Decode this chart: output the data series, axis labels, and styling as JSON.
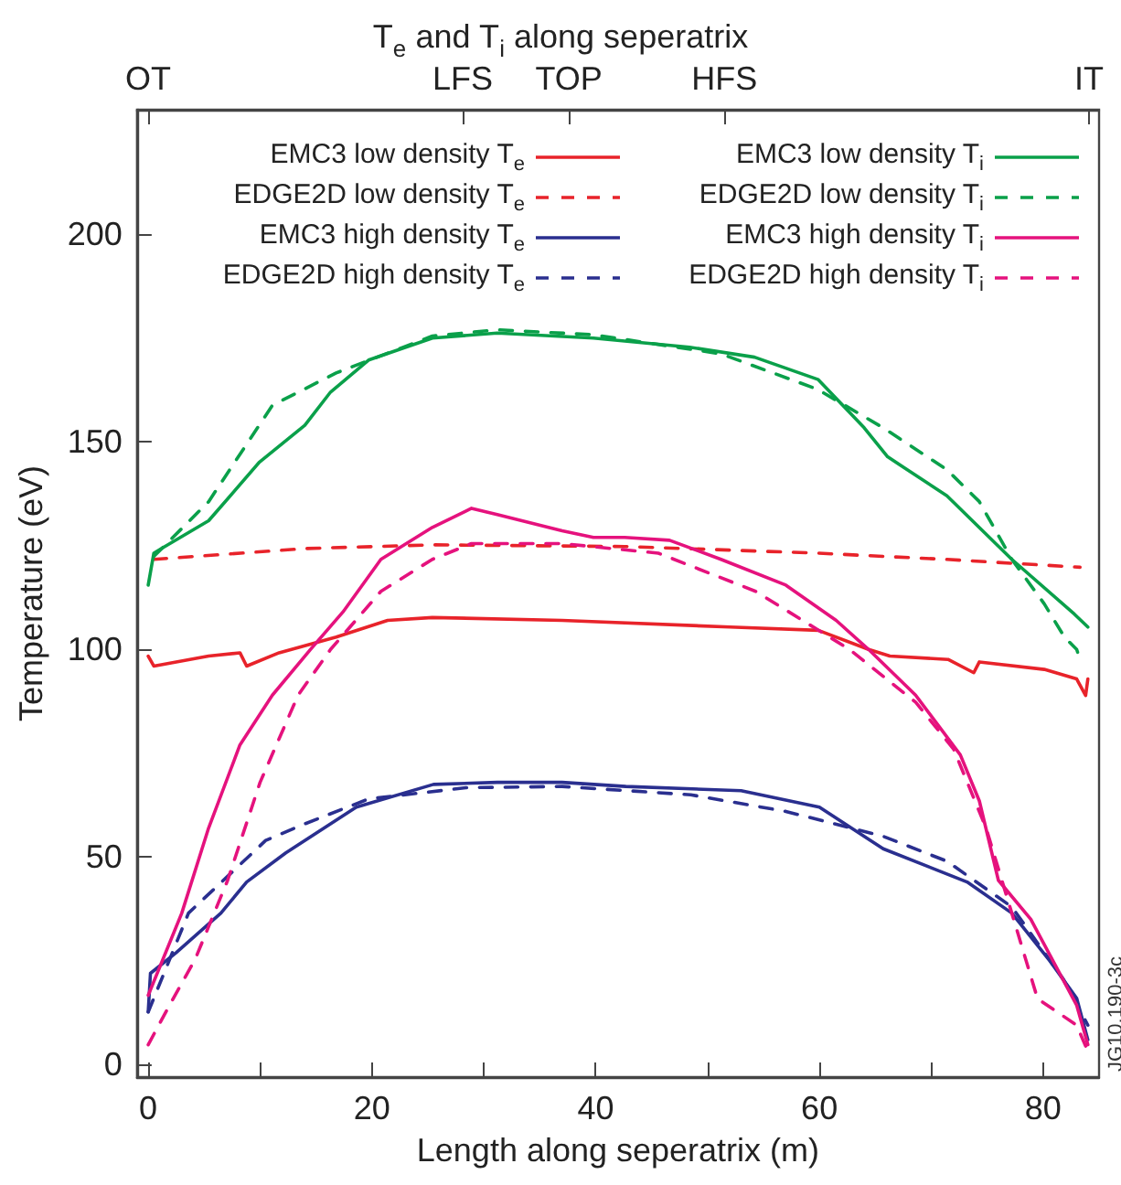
{
  "chart_data": {
    "type": "line",
    "title": "T$_{e}$ and T$_{i}$ along seperatrix",
    "xlabel": "Length along seperatrix (m)",
    "ylabel": "Temperature (eV)",
    "xlim": [
      -1,
      85
    ],
    "xticks": [
      0,
      {
        "value": 10,
        "label": null
      },
      20,
      {
        "value": 30,
        "label": null
      },
      40,
      {
        "value": 50,
        "label": null
      },
      60,
      {
        "value": 70,
        "label": null
      },
      80
    ],
    "ylim": [
      -3,
      230
    ],
    "yticks": [
      0,
      50,
      100,
      150,
      200
    ],
    "grid": false,
    "legend": "top",
    "marker": "none",
    "annotations": [
      "JG10.190-3c"
    ],
    "ref_lines": [
      {
        "axis": "x",
        "value": 0,
        "label": "OT"
      },
      {
        "axis": "x",
        "value": 28.1,
        "label": "LFS"
      },
      {
        "axis": "x",
        "value": 37.6,
        "label": "TOP"
      },
      {
        "axis": "x",
        "value": 51.5,
        "label": "HFS"
      },
      {
        "axis": "x",
        "value": 84.1,
        "label": "IT"
      }
    ],
    "series": [
      {
        "name": "EMC3 low density T$_{e}$",
        "color": "#e8232a",
        "line_style": "solid",
        "x": [
          0,
          0.5,
          5.4,
          8.2,
          8.8,
          11.7,
          16.8,
          21.4,
          25.4,
          37,
          52,
          59.9,
          64.4,
          66.3,
          71.5,
          73.8,
          74.3,
          80.1,
          83,
          83.8,
          84
        ],
        "values": [
          98.4,
          96,
          98.4,
          99.2,
          96,
          99.2,
          103,
          107,
          107.7,
          107,
          105.4,
          104.6,
          100,
          98.4,
          97.6,
          94.4,
          97,
          95.2,
          92.9,
          88.9,
          92.9
        ]
      },
      {
        "name": "EDGE2D low density T$_{e}$",
        "color": "#e8232a",
        "line_style": "dashed",
        "x": [
          0.5,
          14,
          25.4,
          42.6,
          59.8,
          71.3,
          83.3
        ],
        "values": [
          121.7,
          124.3,
          125.2,
          124.8,
          123.2,
          121.7,
          119.8
        ]
      },
      {
        "name": "EMC3 high density T$_{e}$",
        "color": "#2a2f8f",
        "line_style": "solid",
        "x": [
          0,
          0.2,
          2.5,
          6.5,
          8.8,
          12.3,
          18.6,
          25.5,
          31.2,
          37,
          42.7,
          53,
          60,
          65.7,
          73.2,
          77.2,
          80.6,
          83,
          84
        ],
        "values": [
          12.7,
          22,
          27,
          36.5,
          44,
          51,
          62,
          67.5,
          68,
          68,
          67,
          66,
          62,
          52,
          44,
          36.5,
          25,
          16,
          6
        ]
      },
      {
        "name": "EDGE2D high density T$_{e}$",
        "color": "#2a2f8f",
        "line_style": "dashed",
        "x": [
          0,
          3.6,
          10.5,
          14,
          19.7,
          28.4,
          37,
          48.5,
          57,
          65.7,
          71.4,
          77.2,
          81.8,
          84
        ],
        "values": [
          12.7,
          36.5,
          54,
          58,
          64,
          66.7,
          67,
          65,
          61,
          55,
          49,
          38,
          20.6,
          9.5
        ]
      },
      {
        "name": "EMC3 low density T$_{i}$",
        "color": "#0aa04a",
        "line_style": "solid",
        "x": [
          0,
          0.5,
          1,
          5.4,
          9.9,
          14,
          16.3,
          19.7,
          25.4,
          31.2,
          39.8,
          48.4,
          54.2,
          59.9,
          64,
          66.1,
          71.4,
          77.2,
          82.8,
          84
        ],
        "values": [
          115.5,
          123.2,
          124,
          131,
          145,
          154,
          162,
          169.7,
          175,
          176.2,
          175,
          172.8,
          170.4,
          165,
          153.4,
          146.4,
          137,
          121.7,
          108.5,
          105.4
        ]
      },
      {
        "name": "EDGE2D low density T$_{i}$",
        "color": "#0aa04a",
        "line_style": "dashed",
        "x": [
          0.5,
          5.4,
          11.1,
          16.8,
          25.4,
          31.2,
          39.8,
          51.2,
          59.8,
          65.7,
          71.4,
          74.3,
          77.2,
          80.1,
          81.9,
          83,
          83.3
        ],
        "values": [
          122.4,
          135.6,
          158.8,
          166.6,
          175.5,
          177,
          175.8,
          171.2,
          162.7,
          153.4,
          143.3,
          135.6,
          121.7,
          111,
          103,
          100,
          97.6
        ]
      },
      {
        "name": "EMC3 high density T$_{i}$",
        "color": "#e5127d",
        "line_style": "solid",
        "x": [
          0,
          3,
          5.4,
          8.2,
          11.1,
          14.5,
          17.4,
          20.8,
          25.4,
          28.9,
          31.2,
          37,
          39.8,
          42.6,
          46.6,
          51.2,
          57,
          61.5,
          64.4,
          68.6,
          72.6,
          74.3,
          76,
          78.9,
          83,
          84
        ],
        "values": [
          16.7,
          36.5,
          57,
          77,
          89,
          100,
          109,
          121.7,
          129.4,
          134,
          132.5,
          128.6,
          127,
          127,
          126.3,
          121.7,
          115.5,
          107,
          100,
          89,
          74.6,
          63.5,
          44.4,
          35,
          14.3,
          4.8
        ]
      },
      {
        "name": "EDGE2D high density T$_{i}$",
        "color": "#e5127d",
        "line_style": "dashed",
        "x": [
          0,
          1.9,
          4.2,
          7.1,
          10,
          13.4,
          16.3,
          20.8,
          25.4,
          28.9,
          37,
          45.6,
          54.3,
          62.7,
          68.6,
          72,
          74.9,
          77.2,
          79.5,
          83,
          84
        ],
        "values": [
          4.8,
          14.3,
          25.4,
          44.4,
          68,
          89,
          100,
          114,
          121.7,
          125.5,
          125.5,
          123.2,
          114,
          100,
          87.3,
          76,
          57,
          36.5,
          15.9,
          9.5,
          3.2
        ]
      }
    ]
  }
}
